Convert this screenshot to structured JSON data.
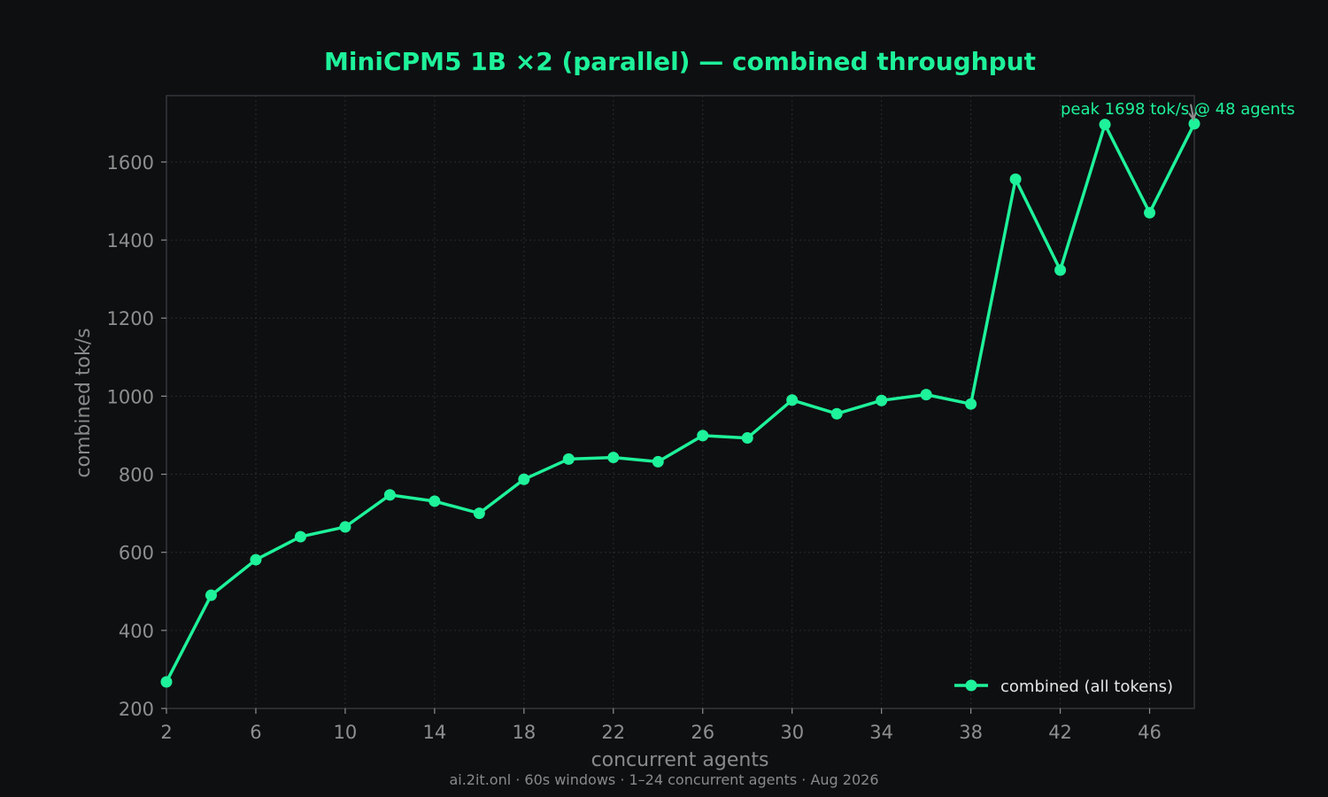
{
  "colors": {
    "background": "#0e0f11",
    "series": "#1ef29a",
    "axis_text": "#8f8f8f",
    "grid": "#2a2b2e",
    "frame": "#35363a"
  },
  "footer": "ai.2it.onl · 60s windows · 1–24 concurrent agents · Aug 2026",
  "chart_data": {
    "type": "line",
    "title": "MiniCPM5 1B ×2 (parallel) — combined throughput",
    "xlabel": "concurrent agents",
    "ylabel": "combined tok/s",
    "xlim": [
      2,
      48
    ],
    "ylim": [
      200,
      1770
    ],
    "xticks": [
      2,
      6,
      10,
      14,
      18,
      22,
      26,
      30,
      34,
      38,
      42,
      46
    ],
    "yticks": [
      200,
      400,
      600,
      800,
      1000,
      1200,
      1400,
      1600
    ],
    "grid": true,
    "legend_position": "bottom-right",
    "series": [
      {
        "name": "combined (all tokens)",
        "x": [
          2,
          4,
          6,
          8,
          10,
          12,
          14,
          16,
          18,
          20,
          22,
          24,
          26,
          28,
          30,
          32,
          34,
          36,
          38,
          40,
          42,
          44,
          46,
          48
        ],
        "y": [
          268,
          490,
          581,
          640,
          665,
          747,
          731,
          700,
          787,
          839,
          843,
          832,
          899,
          893,
          990,
          955,
          989,
          1004,
          980,
          1556,
          1323,
          1696,
          1470,
          1698
        ]
      }
    ],
    "annotation": {
      "text": "peak 1698 tok/s @ 48 agents",
      "x": 48,
      "y": 1698
    }
  }
}
